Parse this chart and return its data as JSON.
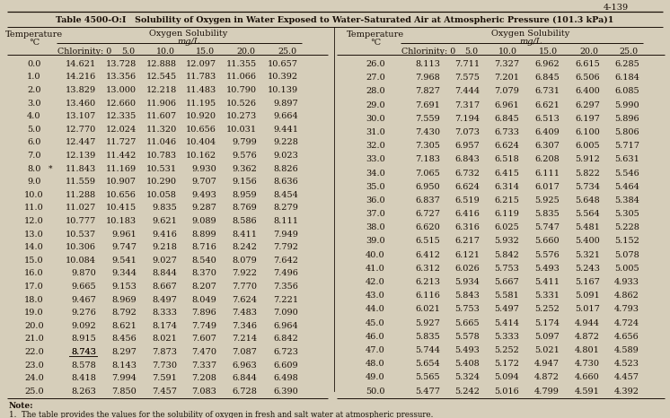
{
  "page_num": "4-139",
  "background_color": "#d6ceba",
  "title": "Table 4500-O:I   Solubility of Oxygen in Water Exposed to Water-Saturated Air at Atmospheric Pressure (101.3 kPa)",
  "title_superscript": "1",
  "left_table": {
    "temp_col": [
      0.0,
      1.0,
      2.0,
      3.0,
      4.0,
      5.0,
      6.0,
      7.0,
      8.0,
      9.0,
      10.0,
      11.0,
      12.0,
      13.0,
      14.0,
      15.0,
      16.0,
      17.0,
      18.0,
      19.0,
      20.0,
      21.0,
      22.0,
      23.0,
      24.0,
      25.0
    ],
    "chlorinity_0": [
      14.621,
      14.216,
      13.829,
      13.46,
      13.107,
      12.77,
      12.447,
      12.139,
      11.843,
      11.559,
      11.288,
      11.027,
      10.777,
      10.537,
      10.306,
      10.084,
      9.87,
      9.665,
      9.467,
      9.276,
      9.092,
      8.915,
      8.743,
      8.578,
      8.418,
      8.263
    ],
    "chlorinity_5": [
      13.728,
      13.356,
      13.0,
      12.66,
      12.335,
      12.024,
      11.727,
      11.442,
      11.169,
      10.907,
      10.656,
      10.415,
      10.183,
      9.961,
      9.747,
      9.541,
      9.344,
      9.153,
      8.969,
      8.792,
      8.621,
      8.456,
      8.297,
      8.143,
      7.994,
      7.85
    ],
    "chlorinity_10": [
      12.888,
      12.545,
      12.218,
      11.906,
      11.607,
      11.32,
      11.046,
      10.783,
      10.531,
      10.29,
      10.058,
      9.835,
      9.621,
      9.416,
      9.218,
      9.027,
      8.844,
      8.667,
      8.497,
      8.333,
      8.174,
      8.021,
      7.873,
      7.73,
      7.591,
      7.457
    ],
    "chlorinity_15": [
      12.097,
      11.783,
      11.483,
      11.195,
      10.92,
      10.656,
      10.404,
      10.162,
      9.93,
      9.707,
      9.493,
      9.287,
      9.089,
      8.899,
      8.716,
      8.54,
      8.37,
      8.207,
      8.049,
      7.896,
      7.749,
      7.607,
      7.47,
      7.337,
      7.208,
      7.083
    ],
    "chlorinity_20": [
      11.355,
      11.066,
      10.79,
      10.526,
      10.273,
      10.031,
      9.799,
      9.576,
      9.362,
      9.156,
      8.959,
      8.769,
      8.586,
      8.411,
      8.242,
      8.079,
      7.922,
      7.77,
      7.624,
      7.483,
      7.346,
      7.214,
      7.087,
      6.963,
      6.844,
      6.728
    ],
    "chlorinity_25": [
      10.657,
      10.392,
      10.139,
      9.897,
      9.664,
      9.441,
      9.228,
      9.023,
      8.826,
      8.636,
      8.454,
      8.279,
      8.111,
      7.949,
      7.792,
      7.642,
      7.496,
      7.356,
      7.221,
      7.09,
      6.964,
      6.842,
      6.723,
      6.609,
      6.498,
      6.39
    ],
    "underline_row": 22,
    "star_row": 8
  },
  "right_table": {
    "temp_col": [
      26.0,
      27.0,
      28.0,
      29.0,
      30.0,
      31.0,
      32.0,
      33.0,
      34.0,
      35.0,
      36.0,
      37.0,
      38.0,
      39.0,
      40.0,
      41.0,
      42.0,
      43.0,
      44.0,
      45.0,
      46.0,
      47.0,
      48.0,
      49.0,
      50.0
    ],
    "chlorinity_0": [
      8.113,
      7.968,
      7.827,
      7.691,
      7.559,
      7.43,
      7.305,
      7.183,
      7.065,
      6.95,
      6.837,
      6.727,
      6.62,
      6.515,
      6.412,
      6.312,
      6.213,
      6.116,
      6.021,
      5.927,
      5.835,
      5.744,
      5.654,
      5.565,
      5.477
    ],
    "chlorinity_5": [
      7.711,
      7.575,
      7.444,
      7.317,
      7.194,
      7.073,
      6.957,
      6.843,
      6.732,
      6.624,
      6.519,
      6.416,
      6.316,
      6.217,
      6.121,
      6.026,
      5.934,
      5.843,
      5.753,
      5.665,
      5.578,
      5.493,
      5.408,
      5.324,
      5.242
    ],
    "chlorinity_10": [
      7.327,
      7.201,
      7.079,
      6.961,
      6.845,
      6.733,
      6.624,
      6.518,
      6.415,
      6.314,
      6.215,
      6.119,
      6.025,
      5.932,
      5.842,
      5.753,
      5.667,
      5.581,
      5.497,
      5.414,
      5.333,
      5.252,
      5.172,
      5.094,
      5.016
    ],
    "chlorinity_15": [
      6.962,
      6.845,
      6.731,
      6.621,
      6.513,
      6.409,
      6.307,
      6.208,
      6.111,
      6.017,
      5.925,
      5.835,
      5.747,
      5.66,
      5.576,
      5.493,
      5.411,
      5.331,
      5.252,
      5.174,
      5.097,
      5.021,
      4.947,
      4.872,
      4.799
    ],
    "chlorinity_20": [
      6.615,
      6.506,
      6.4,
      6.297,
      6.197,
      6.1,
      6.005,
      5.912,
      5.822,
      5.734,
      5.648,
      5.564,
      5.481,
      5.4,
      5.321,
      5.243,
      5.167,
      5.091,
      5.017,
      4.944,
      4.872,
      4.801,
      4.73,
      4.66,
      4.591
    ],
    "chlorinity_25": [
      6.285,
      6.184,
      6.085,
      5.99,
      5.896,
      5.806,
      5.717,
      5.631,
      5.546,
      5.464,
      5.384,
      5.305,
      5.228,
      5.152,
      5.078,
      5.005,
      4.933,
      4.862,
      4.793,
      4.724,
      4.656,
      4.589,
      4.523,
      4.457,
      4.392
    ]
  }
}
